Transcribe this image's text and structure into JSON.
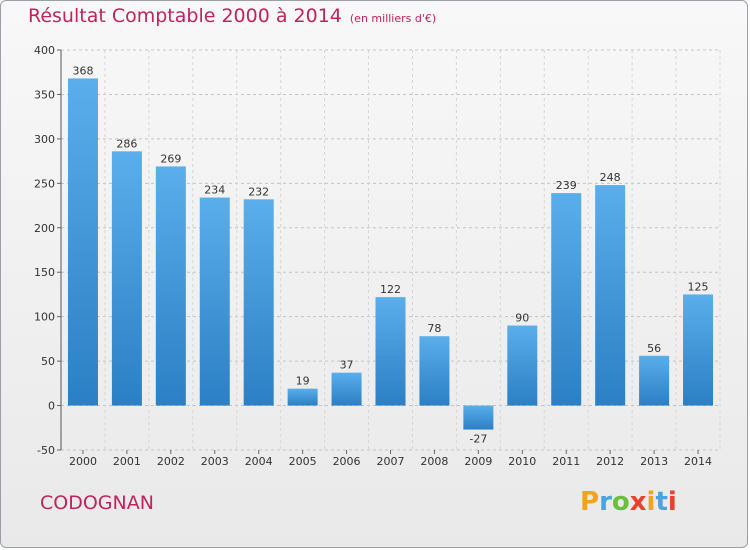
{
  "header": {
    "title": "Résultat Comptable 2000 à 2014",
    "subtitle": "(en milliers d'€)"
  },
  "footer": {
    "commune": "CODOGNAN",
    "logo_letters": [
      "P",
      "r",
      "o",
      "x",
      "i",
      "t",
      "i"
    ],
    "logo_colors": [
      "#f2a31b",
      "#4aa3df",
      "#6cbf3a",
      "#e8412c",
      "#f2a31b",
      "#4aa3df",
      "#e8412c"
    ]
  },
  "colors": {
    "bar_top": "#5aaeea",
    "bar_bottom": "#2b7fc4",
    "accent": "#c0245c"
  },
  "chart_data": {
    "type": "bar",
    "title": "Résultat Comptable 2000 à 2014",
    "subtitle": "(en milliers d'€)",
    "xlabel": "",
    "ylabel": "",
    "categories": [
      "2000",
      "2001",
      "2002",
      "2003",
      "2004",
      "2005",
      "2006",
      "2007",
      "2008",
      "2009",
      "2010",
      "2011",
      "2012",
      "2013",
      "2014"
    ],
    "values": [
      368,
      286,
      269,
      234,
      232,
      19,
      37,
      122,
      78,
      -27,
      90,
      239,
      248,
      56,
      125
    ],
    "ylim": [
      -50,
      400
    ],
    "yticks": [
      -50,
      0,
      50,
      100,
      150,
      200,
      250,
      300,
      350,
      400
    ],
    "grid": true,
    "legend": "none"
  }
}
